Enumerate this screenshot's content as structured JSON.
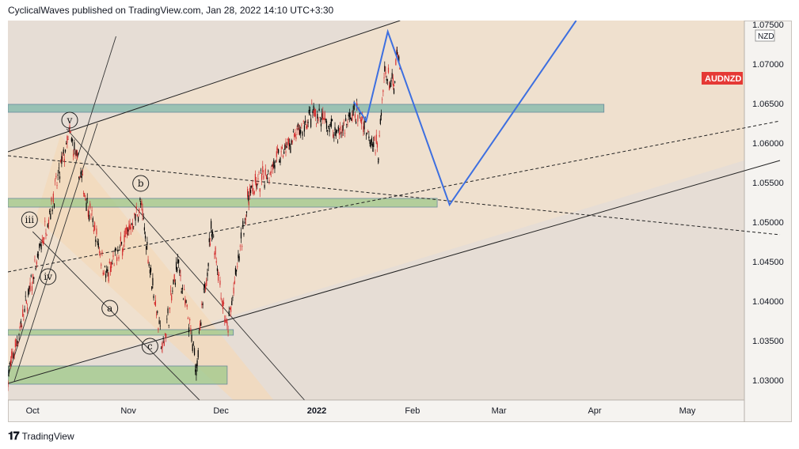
{
  "header": {
    "text": "CyclicalWaves published on TradingView.com, Jan 28, 2022 14:10 UTC+3:30"
  },
  "footer": {
    "brand": "TradingView"
  },
  "chart_data": {
    "type": "candlestick",
    "symbol_badge": "AUDNZD",
    "currency_label": "NZD",
    "last_price_badge_color": "#e53935",
    "colors": {
      "up": "#000000",
      "down": "#d32f2f",
      "bg": "#efe0cd",
      "channel": "#f3d9bb",
      "zone_green": "#9fc98a",
      "zone_teal": "#7fb8aa",
      "projection": "#3d6fe0"
    },
    "x_ticks": [
      "Oct",
      "Nov",
      "Dec",
      "2022",
      "Feb",
      "Mar",
      "Apr",
      "May"
    ],
    "y_ticks": [
      "1.07500",
      "1.07000",
      "1.06500",
      "1.06000",
      "1.05500",
      "1.05000",
      "1.04500",
      "1.04000",
      "1.03500",
      "1.03000"
    ],
    "ylim": [
      1.0275,
      1.0755
    ],
    "wave_labels": [
      {
        "label": "v",
        "date": "2021-10-13",
        "price": 1.0629
      },
      {
        "label": "iii",
        "date": "2021-09-30",
        "price": 1.0503
      },
      {
        "label": "iv",
        "date": "2021-10-06",
        "price": 1.0431
      },
      {
        "label": "b",
        "date": "2021-11-05",
        "price": 1.0549
      },
      {
        "label": "a",
        "date": "2021-10-26",
        "price": 1.0391
      },
      {
        "label": "c",
        "date": "2021-11-08",
        "price": 1.0343
      }
    ],
    "projection": [
      {
        "date": "2022-01-13",
        "price": 1.0652
      },
      {
        "date": "2022-01-17",
        "price": 1.0628
      },
      {
        "date": "2022-01-24",
        "price": 1.0741
      },
      {
        "date": "2022-02-13",
        "price": 1.0522
      },
      {
        "date": "2022-03-26",
        "price": 1.0755
      }
    ],
    "zones": [
      {
        "from": "2021-09-23",
        "to": "2022-04-04",
        "low": 1.0639,
        "high": 1.0649
      },
      {
        "from": "2021-09-23",
        "to": "2022-02-09",
        "low": 1.0519,
        "high": 1.053
      },
      {
        "from": "2021-09-23",
        "to": "2021-12-05",
        "low": 1.0357,
        "high": 1.0364
      },
      {
        "from": "2021-09-23",
        "to": "2021-12-03",
        "low": 1.0295,
        "high": 1.0318
      }
    ],
    "trend_lines": [
      {
        "from": [
          "2021-09-23",
          1.0589
        ],
        "to": [
          "2022-01-28",
          1.0755
        ],
        "style": "solid"
      },
      {
        "from": [
          "2021-09-23",
          1.0296
        ],
        "to": [
          "2022-05-31",
          1.0578
        ],
        "style": "solid"
      },
      {
        "from": [
          "2021-09-23",
          1.0437
        ],
        "to": [
          "2022-05-31",
          1.0628
        ],
        "style": "dashed"
      },
      {
        "from": [
          "2021-09-23",
          1.0584
        ],
        "to": [
          "2022-05-31",
          1.0484
        ],
        "style": "dashed"
      }
    ],
    "key_prices": [
      {
        "date": "2021-09-23",
        "price": 1.0305
      },
      {
        "date": "2021-10-13",
        "price": 1.0612
      },
      {
        "date": "2021-10-25",
        "price": 1.043
      },
      {
        "date": "2021-11-05",
        "price": 1.0522
      },
      {
        "date": "2021-11-12",
        "price": 1.0339
      },
      {
        "date": "2021-11-17",
        "price": 1.0449
      },
      {
        "date": "2021-11-23",
        "price": 1.0318
      },
      {
        "date": "2021-11-28",
        "price": 1.0495
      },
      {
        "date": "2021-12-03",
        "price": 1.0361
      },
      {
        "date": "2021-12-10",
        "price": 1.0535
      },
      {
        "date": "2021-12-22",
        "price": 1.0592
      },
      {
        "date": "2021-12-31",
        "price": 1.0638
      },
      {
        "date": "2022-01-08",
        "price": 1.0612
      },
      {
        "date": "2022-01-14",
        "price": 1.0641
      },
      {
        "date": "2022-01-21",
        "price": 1.059
      },
      {
        "date": "2022-01-23",
        "price": 1.069
      },
      {
        "date": "2022-01-26",
        "price": 1.0668
      },
      {
        "date": "2022-01-27",
        "price": 1.0712
      },
      {
        "date": "2022-01-28",
        "price": 1.069
      }
    ]
  }
}
